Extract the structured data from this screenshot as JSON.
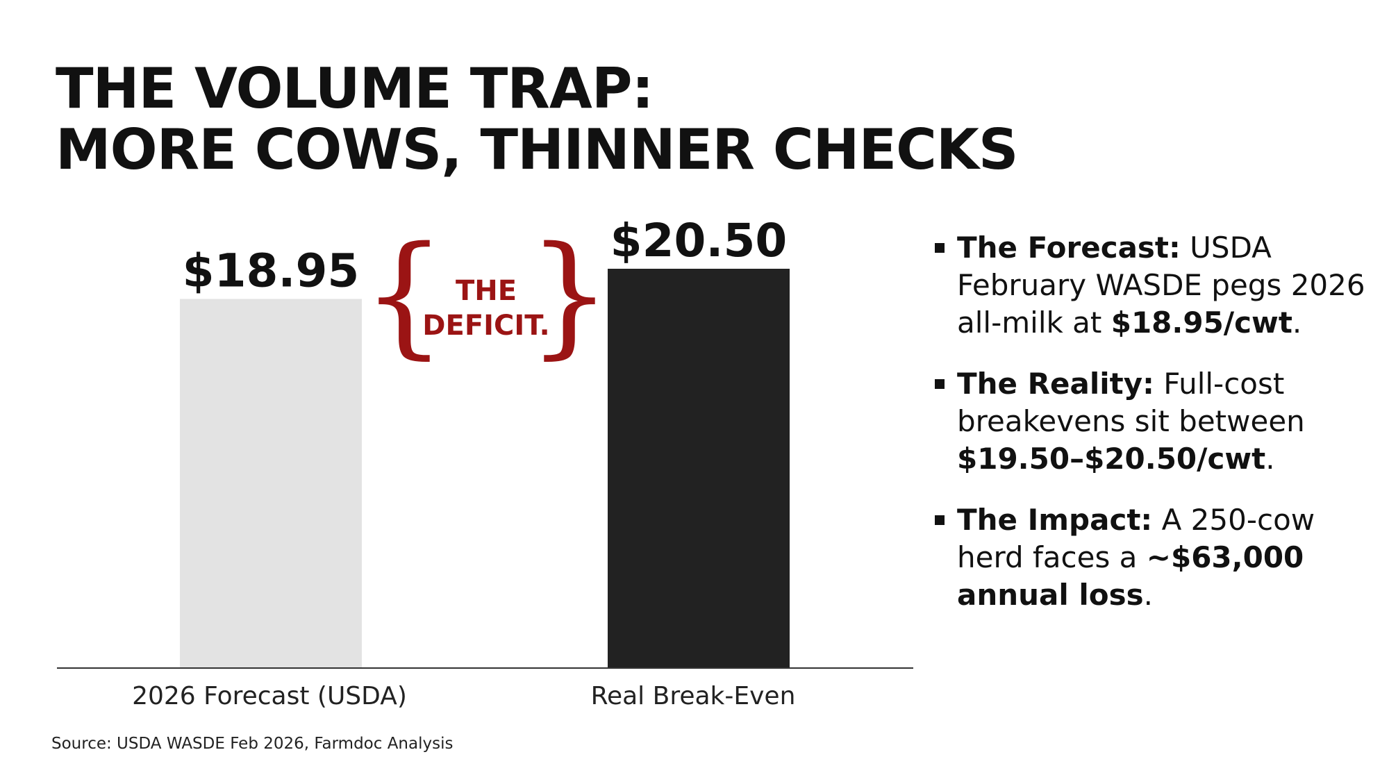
{
  "title": {
    "line1": "THE VOLUME TRAP:",
    "line2": "MORE COWS, THINNER CHECKS"
  },
  "chart_data": {
    "type": "bar",
    "categories": [
      "2026 Forecast (USDA)",
      "Real Break-Even"
    ],
    "values": [
      18.95,
      20.5
    ],
    "data_labels": [
      "$18.95",
      "$20.50"
    ],
    "colors": [
      "#e3e3e3",
      "#222222"
    ],
    "annotation": {
      "line1": "THE",
      "line2": "DEFICIT.",
      "color": "#9b1414"
    },
    "xlabel": "",
    "ylabel": "",
    "grid": false
  },
  "bullets": [
    {
      "head": "The Forecast:",
      "parts": [
        {
          "text": " USDA February WASDE pegs 2026 all-milk at ",
          "bold": false
        },
        {
          "text": "$18.95/cwt",
          "bold": true
        },
        {
          "text": ".",
          "bold": false
        }
      ]
    },
    {
      "head": "The Reality:",
      "parts": [
        {
          "text": " Full-cost breakevens sit between ",
          "bold": false
        },
        {
          "text": "$19.50–$20.50/cwt",
          "bold": true
        },
        {
          "text": ".",
          "bold": false
        }
      ]
    },
    {
      "head": "The Impact:",
      "parts": [
        {
          "text": " A 250-cow herd faces a ",
          "bold": false
        },
        {
          "text": "~$63,000 annual loss",
          "bold": true
        },
        {
          "text": ".",
          "bold": false
        }
      ]
    }
  ],
  "source": "Source: USDA WASDE Feb 2026, Farmdoc Analysis"
}
